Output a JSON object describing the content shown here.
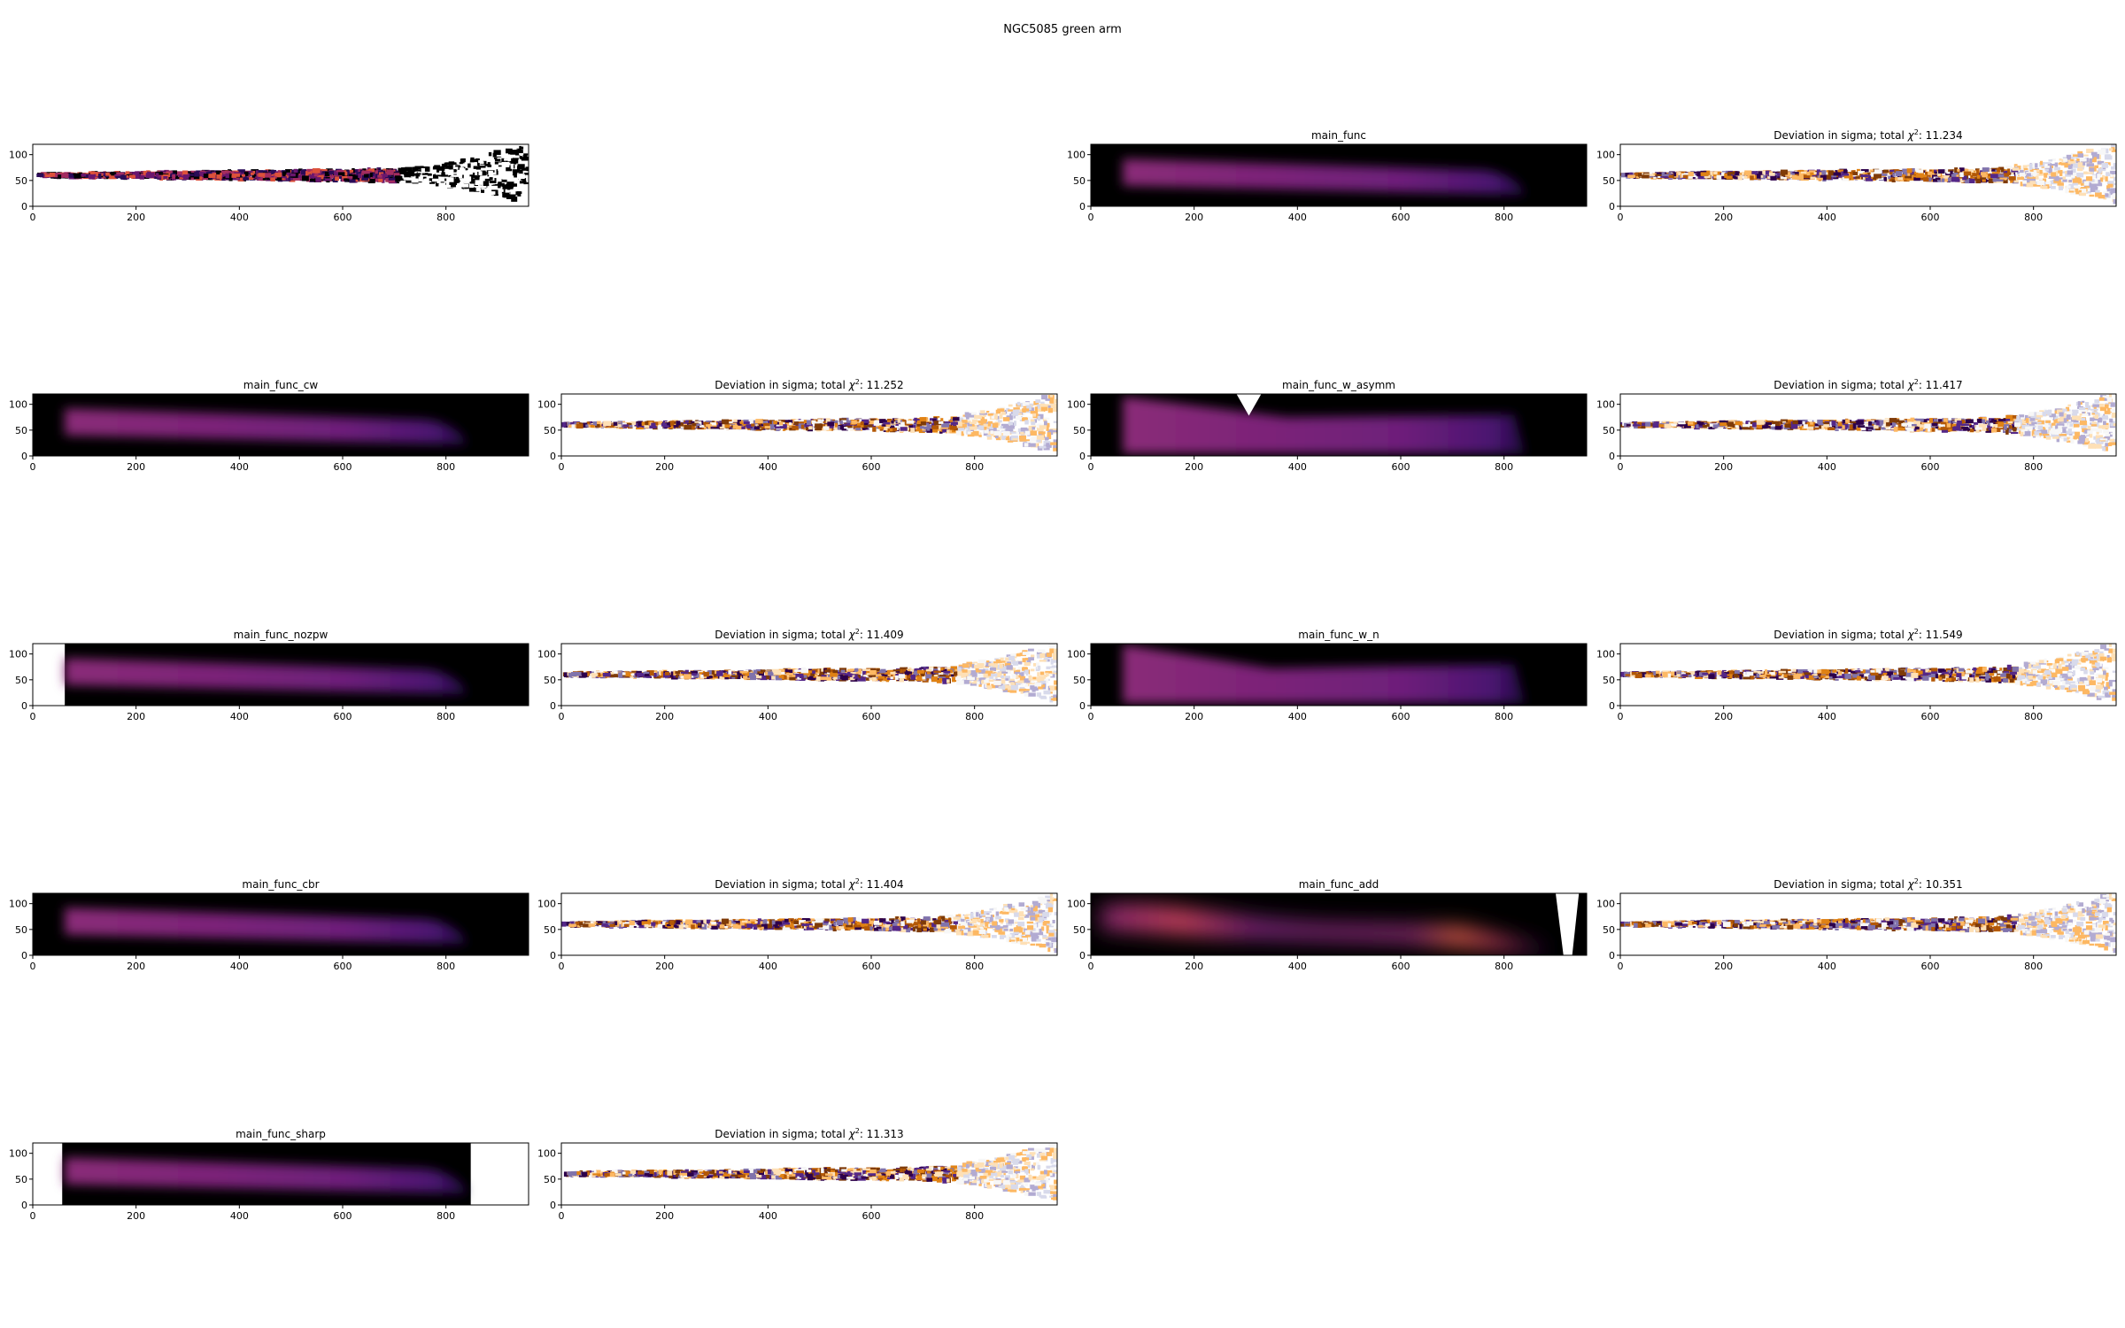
{
  "figure": {
    "suptitle": "NGC5085 green arm"
  },
  "colors": {
    "background": "#000000",
    "model_colormap": "inferno",
    "deviation_colormap": "PuOr"
  },
  "chart_data": [
    {
      "type": "heatmap",
      "panel": "data",
      "title": "",
      "xlim": [
        0,
        960
      ],
      "ylim": [
        0,
        120
      ],
      "xticks": [
        0,
        200,
        400,
        600,
        800
      ],
      "yticks": [
        0,
        50,
        100
      ],
      "colormap": "inferno"
    },
    {
      "type": "heatmap",
      "panel": "model",
      "title": "main_func",
      "xlim": [
        0,
        960
      ],
      "ylim": [
        0,
        120
      ],
      "xticks": [
        0,
        200,
        400,
        600,
        800
      ],
      "yticks": [
        0,
        50,
        100
      ],
      "colormap": "inferno"
    },
    {
      "type": "heatmap",
      "panel": "deviation",
      "title_prefix": "Deviation in sigma; total ",
      "chi2": "11.234",
      "xlim": [
        0,
        960
      ],
      "ylim": [
        0,
        120
      ],
      "xticks": [
        0,
        200,
        400,
        600,
        800
      ],
      "yticks": [
        0,
        50,
        100
      ],
      "colormap": "PuOr"
    },
    {
      "type": "heatmap",
      "panel": "model",
      "title": "main_func_cw",
      "xlim": [
        0,
        960
      ],
      "ylim": [
        0,
        120
      ],
      "xticks": [
        0,
        200,
        400,
        600,
        800
      ],
      "yticks": [
        0,
        50,
        100
      ],
      "colormap": "inferno"
    },
    {
      "type": "heatmap",
      "panel": "deviation",
      "title_prefix": "Deviation in sigma; total ",
      "chi2": "11.252",
      "xlim": [
        0,
        960
      ],
      "ylim": [
        0,
        120
      ],
      "xticks": [
        0,
        200,
        400,
        600,
        800
      ],
      "yticks": [
        0,
        50,
        100
      ],
      "colormap": "PuOr"
    },
    {
      "type": "heatmap",
      "panel": "model",
      "title": "main_func_w_asymm",
      "xlim": [
        0,
        960
      ],
      "ylim": [
        0,
        120
      ],
      "xticks": [
        0,
        200,
        400,
        600,
        800
      ],
      "yticks": [
        0,
        50,
        100
      ],
      "colormap": "inferno"
    },
    {
      "type": "heatmap",
      "panel": "deviation",
      "title_prefix": "Deviation in sigma; total ",
      "chi2": "11.417",
      "xlim": [
        0,
        960
      ],
      "ylim": [
        0,
        120
      ],
      "xticks": [
        0,
        200,
        400,
        600,
        800
      ],
      "yticks": [
        0,
        50,
        100
      ],
      "colormap": "PuOr"
    },
    {
      "type": "heatmap",
      "panel": "model",
      "title": "main_func_nozpw",
      "xlim": [
        0,
        960
      ],
      "ylim": [
        0,
        120
      ],
      "xticks": [
        0,
        200,
        400,
        600,
        800
      ],
      "yticks": [
        0,
        50,
        100
      ],
      "colormap": "inferno"
    },
    {
      "type": "heatmap",
      "panel": "deviation",
      "title_prefix": "Deviation in sigma; total ",
      "chi2": "11.409",
      "xlim": [
        0,
        960
      ],
      "ylim": [
        0,
        120
      ],
      "xticks": [
        0,
        200,
        400,
        600,
        800
      ],
      "yticks": [
        0,
        50,
        100
      ],
      "colormap": "PuOr"
    },
    {
      "type": "heatmap",
      "panel": "model",
      "title": "main_func_w_n",
      "xlim": [
        0,
        960
      ],
      "ylim": [
        0,
        120
      ],
      "xticks": [
        0,
        200,
        400,
        600,
        800
      ],
      "yticks": [
        0,
        50,
        100
      ],
      "colormap": "inferno"
    },
    {
      "type": "heatmap",
      "panel": "deviation",
      "title_prefix": "Deviation in sigma; total ",
      "chi2": "11.549",
      "xlim": [
        0,
        960
      ],
      "ylim": [
        0,
        120
      ],
      "xticks": [
        0,
        200,
        400,
        600,
        800
      ],
      "yticks": [
        0,
        50,
        100
      ],
      "colormap": "PuOr"
    },
    {
      "type": "heatmap",
      "panel": "model",
      "title": "main_func_cbr",
      "xlim": [
        0,
        960
      ],
      "ylim": [
        0,
        120
      ],
      "xticks": [
        0,
        200,
        400,
        600,
        800
      ],
      "yticks": [
        0,
        50,
        100
      ],
      "colormap": "inferno"
    },
    {
      "type": "heatmap",
      "panel": "deviation",
      "title_prefix": "Deviation in sigma; total ",
      "chi2": "11.404",
      "xlim": [
        0,
        960
      ],
      "ylim": [
        0,
        120
      ],
      "xticks": [
        0,
        200,
        400,
        600,
        800
      ],
      "yticks": [
        0,
        50,
        100
      ],
      "colormap": "PuOr"
    },
    {
      "type": "heatmap",
      "panel": "model",
      "title": "main_func_add",
      "xlim": [
        0,
        960
      ],
      "ylim": [
        0,
        120
      ],
      "xticks": [
        0,
        200,
        400,
        600,
        800
      ],
      "yticks": [
        0,
        50,
        100
      ],
      "colormap": "inferno"
    },
    {
      "type": "heatmap",
      "panel": "deviation",
      "title_prefix": "Deviation in sigma; total ",
      "chi2": "10.351",
      "xlim": [
        0,
        960
      ],
      "ylim": [
        0,
        120
      ],
      "xticks": [
        0,
        200,
        400,
        600,
        800
      ],
      "yticks": [
        0,
        50,
        100
      ],
      "colormap": "PuOr"
    },
    {
      "type": "heatmap",
      "panel": "model",
      "title": "main_func_sharp",
      "xlim": [
        0,
        960
      ],
      "ylim": [
        0,
        120
      ],
      "xticks": [
        0,
        200,
        400,
        600,
        800
      ],
      "yticks": [
        0,
        50,
        100
      ],
      "colormap": "inferno"
    },
    {
      "type": "heatmap",
      "panel": "deviation",
      "title_prefix": "Deviation in sigma; total ",
      "chi2": "11.313",
      "xlim": [
        0,
        960
      ],
      "ylim": [
        0,
        120
      ],
      "xticks": [
        0,
        200,
        400,
        600,
        800
      ],
      "yticks": [
        0,
        50,
        100
      ],
      "colormap": "PuOr"
    }
  ]
}
